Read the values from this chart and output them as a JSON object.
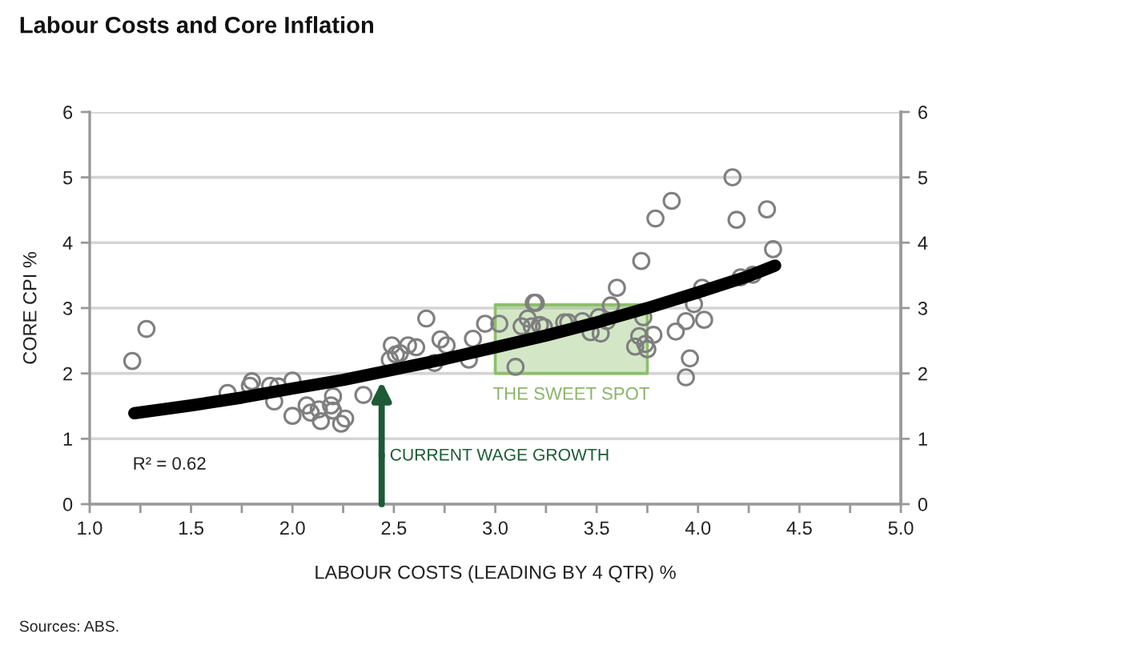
{
  "chart_data": {
    "type": "scatter",
    "title": "Labour Costs and Core Inflation",
    "xlabel": "LABOUR COSTS (LEADING BY 4 QTR) %",
    "ylabel": "CORE CPI %",
    "xlim": [
      1.0,
      5.0
    ],
    "xticks": [
      {
        "value": 1.0,
        "label": "1.0"
      },
      {
        "value": 1.25,
        "label": null
      },
      {
        "value": 1.5,
        "label": "1.5"
      },
      {
        "value": 1.75,
        "label": null
      },
      {
        "value": 2.0,
        "label": "2.0"
      },
      {
        "value": 2.25,
        "label": null
      },
      {
        "value": 2.5,
        "label": "2.5"
      },
      {
        "value": 2.75,
        "label": null
      },
      {
        "value": 3.0,
        "label": "3.0"
      },
      {
        "value": 3.25,
        "label": null
      },
      {
        "value": 3.5,
        "label": "3.5"
      },
      {
        "value": 3.75,
        "label": null
      },
      {
        "value": 4.0,
        "label": "4.0"
      },
      {
        "value": 4.25,
        "label": null
      },
      {
        "value": 4.5,
        "label": "4.5"
      },
      {
        "value": 4.75,
        "label": null
      },
      {
        "value": 5.0,
        "label": "5.0"
      }
    ],
    "ylim": [
      0,
      6
    ],
    "yticks": [
      0,
      1,
      2,
      3,
      4,
      5,
      6
    ],
    "y2lim": [
      0,
      6
    ],
    "y2ticks": [
      0,
      1,
      2,
      3,
      4,
      5,
      6
    ],
    "grid": "y",
    "series": [
      {
        "type": "line",
        "color": "#8cbf6a",
        "x": [
          3.0,
          3.75
        ],
        "values": [
          3.05,
          3.05
        ],
        "lower": [
          2.0,
          2.0
        ],
        "upper": [
          3.05,
          3.05
        ]
      },
      {
        "color": "#7f7f7f",
        "marker": "circle",
        "x": [
          1.21,
          1.28,
          1.68,
          1.79,
          1.8,
          1.89,
          1.93,
          2.0,
          1.91,
          2.0,
          2.07,
          2.09,
          2.14,
          2.13,
          2.2,
          2.19,
          2.2,
          2.24,
          2.26,
          2.35,
          2.49,
          2.48,
          2.51,
          2.53,
          2.57,
          2.61,
          2.66,
          2.73,
          2.76,
          2.7,
          2.87,
          2.89,
          2.95,
          3.02,
          3.1,
          3.13,
          3.16,
          3.19,
          3.2,
          3.18,
          3.22,
          3.24,
          3.34,
          3.36,
          3.43,
          3.47,
          3.52,
          3.51,
          3.55,
          3.57,
          3.6,
          3.72,
          3.73,
          3.71,
          3.69,
          3.74,
          3.75,
          3.78,
          3.79,
          3.87,
          3.89,
          3.94,
          3.96,
          3.94,
          3.98,
          4.03,
          4.02,
          4.17,
          4.19,
          4.21,
          4.27,
          4.34,
          4.37
        ],
        "values": [
          2.19,
          2.68,
          1.7,
          1.81,
          1.88,
          1.81,
          1.8,
          1.89,
          1.57,
          1.35,
          1.51,
          1.4,
          1.27,
          1.45,
          1.65,
          1.51,
          1.43,
          1.23,
          1.31,
          1.67,
          2.43,
          2.21,
          2.29,
          2.31,
          2.43,
          2.4,
          2.84,
          2.52,
          2.43,
          2.16,
          2.21,
          2.53,
          2.76,
          2.76,
          2.1,
          2.72,
          2.84,
          3.08,
          3.08,
          2.72,
          2.74,
          2.71,
          2.78,
          2.78,
          2.8,
          2.63,
          2.61,
          2.86,
          2.8,
          3.04,
          3.31,
          3.72,
          2.86,
          2.57,
          2.41,
          2.45,
          2.37,
          2.59,
          4.37,
          4.64,
          2.64,
          2.8,
          2.23,
          1.94,
          3.06,
          2.82,
          3.31,
          5.0,
          4.35,
          3.47,
          3.51,
          4.51,
          3.9
        ]
      },
      {
        "type": "line",
        "color": "#000000",
        "x": [
          1.22,
          1.5,
          1.75,
          2.0,
          2.25,
          2.5,
          2.75,
          3.0,
          3.25,
          3.5,
          3.75,
          4.0,
          4.25,
          4.38
        ],
        "values": [
          1.39,
          1.51,
          1.63,
          1.77,
          1.9,
          2.06,
          2.22,
          2.4,
          2.58,
          2.78,
          3.0,
          3.24,
          3.49,
          3.65
        ]
      }
    ],
    "annotations": [
      "R² = 0.62",
      {
        "text": "THE SWEET SPOT",
        "x": 3.375,
        "y": 2.0
      },
      {
        "text": "CURRENT WAGE GROWTH",
        "x": 2.44,
        "y": 1.88
      },
      "Sources: ABS."
    ]
  }
}
